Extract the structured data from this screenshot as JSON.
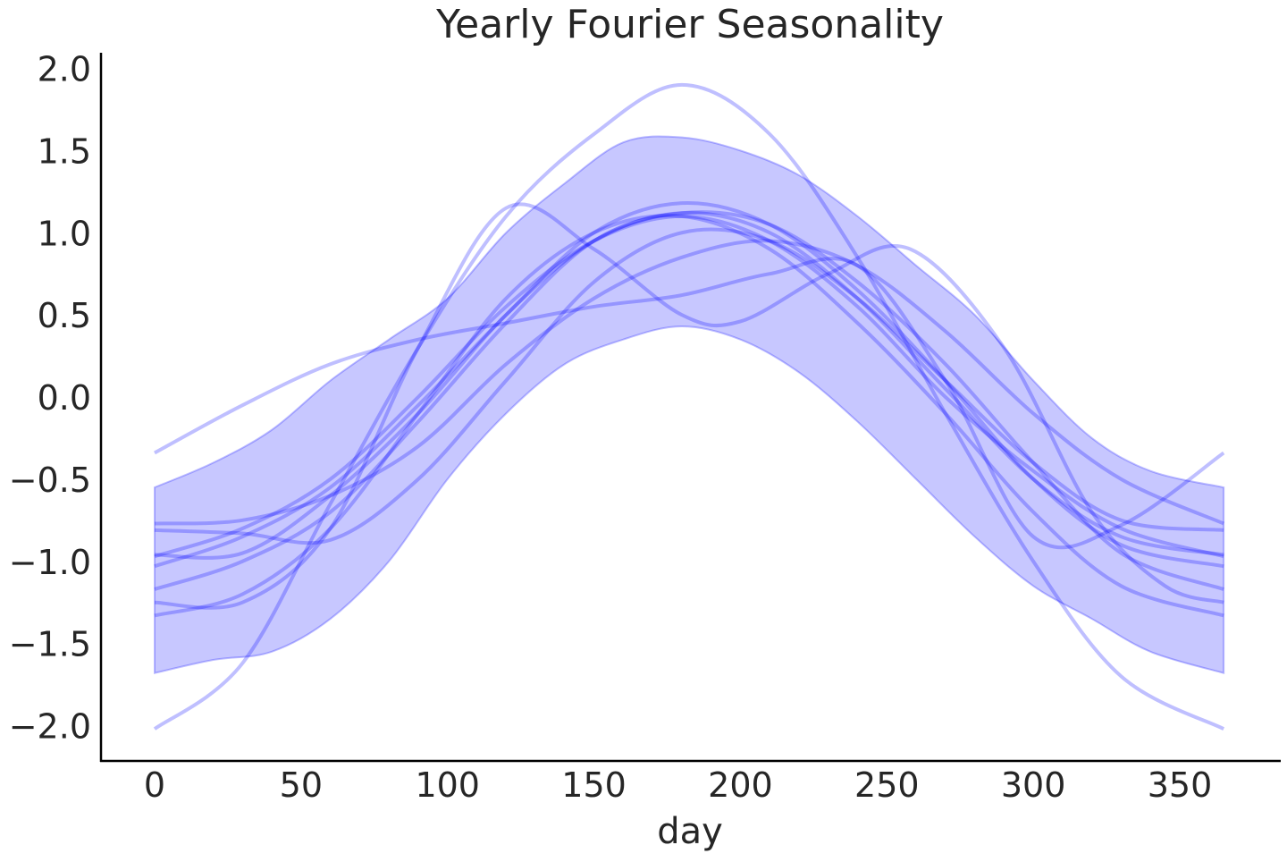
{
  "chart_data": {
    "type": "line",
    "title": "Yearly Fourier Seasonality",
    "xlabel": "day",
    "ylabel": "",
    "xlim": [
      -18,
      385
    ],
    "ylim": [
      -2.2,
      2.1
    ],
    "grid": false,
    "xticks": [
      0,
      50,
      100,
      150,
      200,
      250,
      300,
      350
    ],
    "xtick_labels": [
      "0",
      "50",
      "100",
      "150",
      "200",
      "250",
      "300",
      "350"
    ],
    "yticks": [
      2.0,
      1.5,
      1.0,
      0.5,
      0.0,
      -0.5,
      -1.0,
      -1.5,
      -2.0
    ],
    "ytick_labels": [
      "2.0",
      "1.5",
      "1.0",
      "0.5",
      "0.0",
      "−0.5",
      "−1.0",
      "−1.5",
      "−2.0"
    ],
    "colors": {
      "line": "#0000ff",
      "band": "#0000ff",
      "axis": "#000000"
    },
    "band": {
      "x": [
        0,
        20,
        40,
        60,
        80,
        100,
        120,
        140,
        160,
        180,
        200,
        220,
        240,
        260,
        280,
        300,
        320,
        340,
        365
      ],
      "upper": [
        -0.55,
        -0.4,
        -0.2,
        0.1,
        0.35,
        0.6,
        1.0,
        1.3,
        1.55,
        1.58,
        1.5,
        1.35,
        1.1,
        0.8,
        0.5,
        0.1,
        -0.25,
        -0.45,
        -0.55
      ],
      "lower": [
        -1.68,
        -1.6,
        -1.55,
        -1.35,
        -1.0,
        -0.5,
        -0.1,
        0.2,
        0.35,
        0.43,
        0.35,
        0.15,
        -0.15,
        -0.5,
        -0.85,
        -1.15,
        -1.35,
        -1.55,
        -1.68
      ]
    },
    "series": [
      {
        "x": [
          0,
          30,
          60,
          90,
          120,
          150,
          180,
          210,
          240,
          270,
          300,
          330,
          365
        ],
        "values": [
          -2.02,
          -1.62,
          -0.65,
          0.3,
          1.1,
          1.6,
          1.9,
          1.6,
          0.85,
          -0.1,
          -1.0,
          -1.7,
          -2.02
        ]
      },
      {
        "x": [
          0,
          30,
          60,
          90,
          120,
          150,
          180,
          210,
          240,
          270,
          300,
          330,
          365
        ],
        "values": [
          -0.34,
          -0.05,
          0.2,
          0.35,
          0.45,
          0.55,
          0.62,
          0.75,
          0.8,
          0.1,
          -0.85,
          -0.78,
          -0.34
        ]
      },
      {
        "x": [
          0,
          30,
          60,
          90,
          120,
          150,
          180,
          200,
          230,
          258,
          290,
          320,
          345,
          365
        ],
        "values": [
          -1.25,
          -1.25,
          -0.8,
          0.3,
          1.15,
          0.9,
          0.5,
          0.46,
          0.75,
          0.9,
          0.3,
          -0.7,
          -1.15,
          -1.25
        ]
      },
      {
        "x": [
          0,
          30,
          60,
          90,
          120,
          150,
          180,
          210,
          240,
          270,
          300,
          330,
          365
        ],
        "values": [
          -0.77,
          -0.75,
          -0.6,
          -0.3,
          0.2,
          0.6,
          0.85,
          0.95,
          0.8,
          0.4,
          -0.1,
          -0.5,
          -0.77
        ]
      },
      {
        "x": [
          0,
          30,
          60,
          90,
          120,
          150,
          180,
          210,
          240,
          270,
          300,
          330,
          365
        ],
        "values": [
          -0.81,
          -0.83,
          -0.87,
          -0.5,
          0.1,
          0.7,
          1.0,
          0.95,
          0.6,
          0.1,
          -0.4,
          -0.75,
          -0.81
        ]
      },
      {
        "x": [
          0,
          30,
          60,
          90,
          120,
          150,
          180,
          210,
          240,
          270,
          300,
          330,
          365
        ],
        "values": [
          -0.96,
          -0.95,
          -0.6,
          -0.1,
          0.5,
          0.95,
          1.12,
          1.0,
          0.6,
          0.05,
          -0.5,
          -0.85,
          -0.96
        ]
      },
      {
        "x": [
          0,
          30,
          60,
          90,
          120,
          150,
          180,
          210,
          240,
          270,
          300,
          330,
          365
        ],
        "values": [
          -0.97,
          -0.8,
          -0.5,
          0.0,
          0.55,
          0.95,
          1.1,
          0.95,
          0.55,
          0.0,
          -0.45,
          -0.8,
          -0.97
        ]
      },
      {
        "x": [
          0,
          30,
          60,
          90,
          120,
          150,
          180,
          210,
          240,
          270,
          300,
          330,
          365
        ],
        "values": [
          -1.03,
          -0.85,
          -0.55,
          -0.05,
          0.5,
          1.0,
          1.18,
          1.05,
          0.65,
          0.1,
          -0.5,
          -0.9,
          -1.03
        ]
      },
      {
        "x": [
          0,
          30,
          60,
          90,
          120,
          150,
          180,
          210,
          240,
          270,
          300,
          330,
          365
        ],
        "values": [
          -1.17,
          -1.0,
          -0.7,
          -0.15,
          0.45,
          0.95,
          1.12,
          1.05,
          0.7,
          0.2,
          -0.4,
          -0.95,
          -1.17
        ]
      },
      {
        "x": [
          0,
          30,
          60,
          90,
          120,
          150,
          180,
          210,
          240,
          270,
          300,
          330,
          365
        ],
        "values": [
          -1.33,
          -1.2,
          -0.8,
          -0.1,
          0.6,
          1.0,
          1.1,
          0.9,
          0.45,
          -0.1,
          -0.7,
          -1.15,
          -1.33
        ]
      }
    ]
  }
}
